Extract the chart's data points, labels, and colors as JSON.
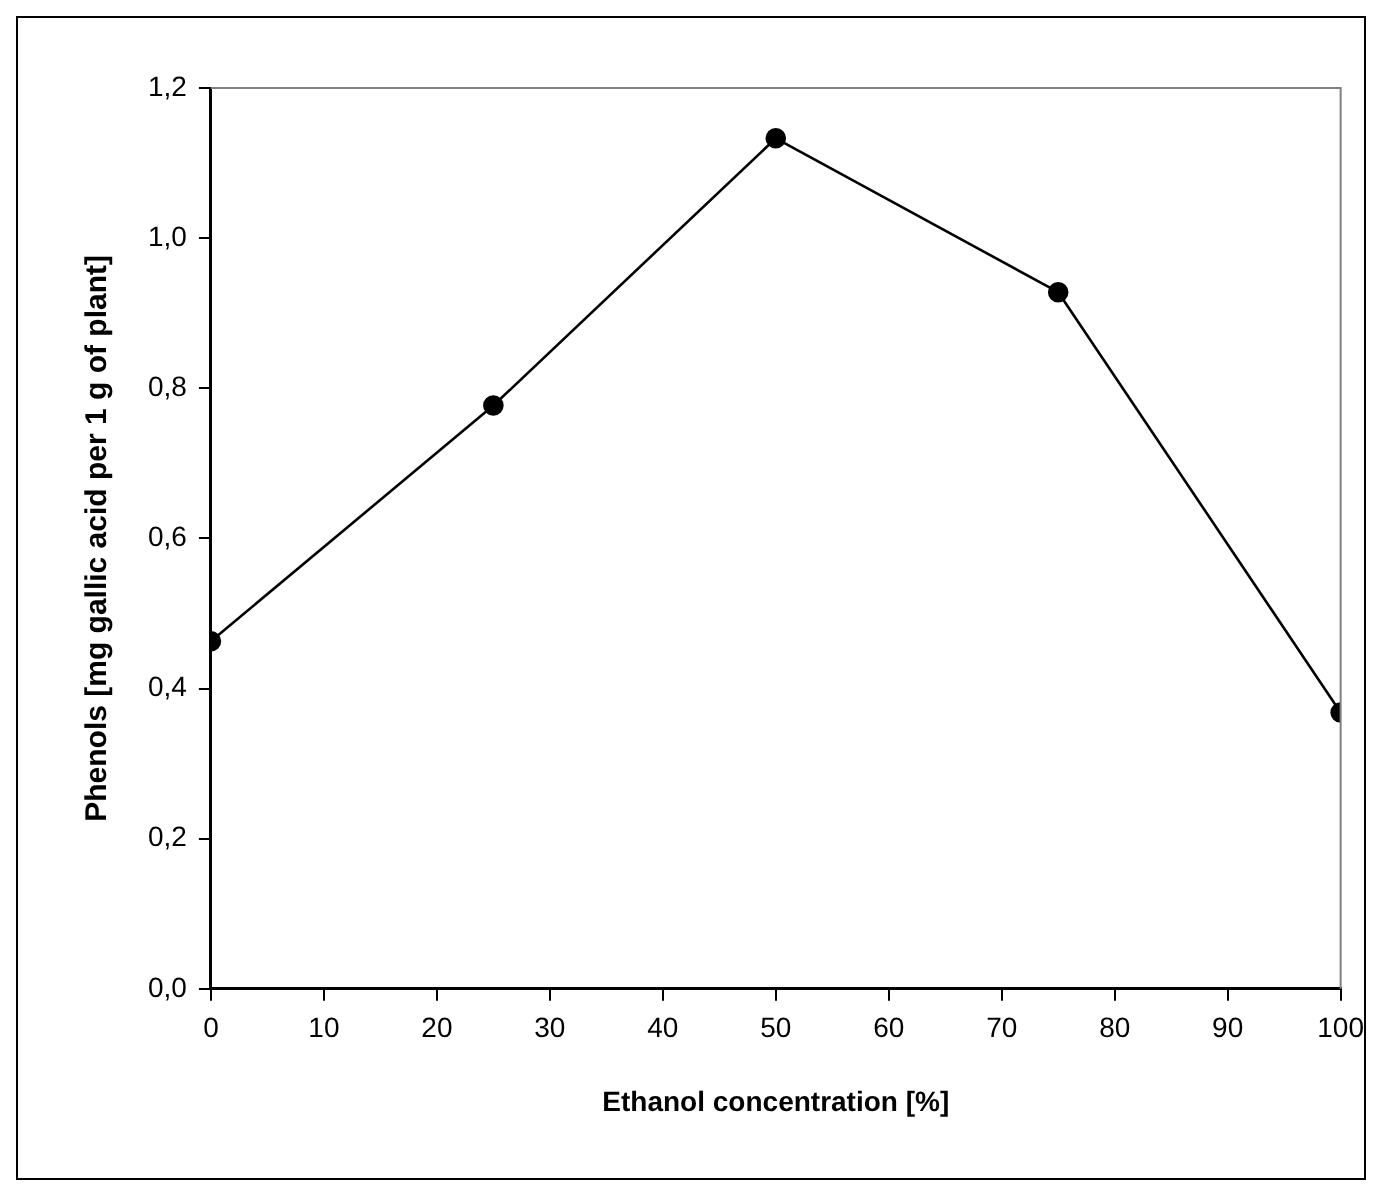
{
  "chart_data": {
    "type": "line",
    "xlabel": "Ethanol concentration [%]",
    "ylabel": "Phenols [mg gallic acid per 1 g of plant]",
    "x": [
      0,
      25,
      50,
      75,
      100
    ],
    "series": [
      {
        "color": "#000000",
        "values": [
          0.463,
          0.777,
          1.133,
          0.928,
          0.368
        ]
      }
    ],
    "xlim": [
      0,
      100
    ],
    "xticks": [
      0,
      10,
      20,
      30,
      40,
      50,
      60,
      70,
      80,
      90,
      100
    ],
    "ylim": [
      0,
      1.2
    ],
    "yticks": [
      {
        "value": 0,
        "label": "0,0"
      },
      {
        "value": 0.2,
        "label": "0,2"
      },
      {
        "value": 0.4,
        "label": "0,4"
      },
      {
        "value": 0.6,
        "label": "0,6"
      },
      {
        "value": 0.8,
        "label": "0,8"
      },
      {
        "value": 1,
        "label": "1,0"
      },
      {
        "value": 1.2,
        "label": "1,2"
      }
    ],
    "grid": false,
    "legend": false,
    "marker": "circle",
    "line_style": "solid"
  }
}
